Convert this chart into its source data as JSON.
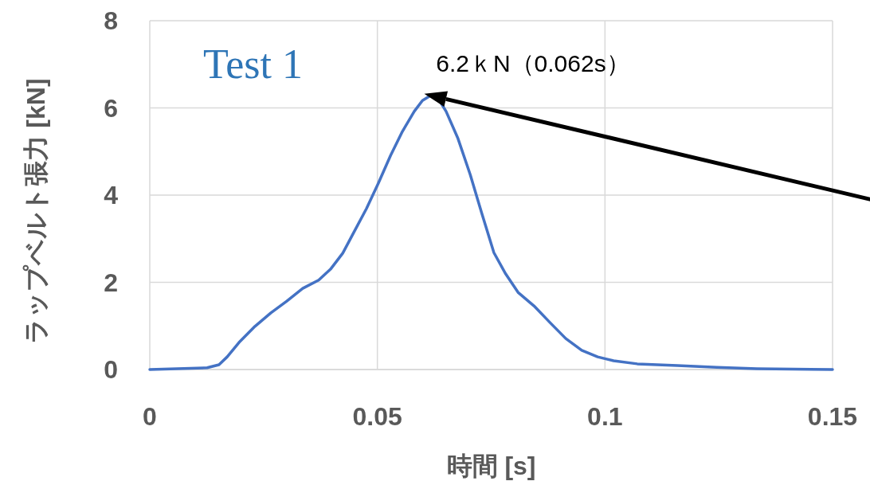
{
  "chart_data": {
    "type": "line",
    "xlabel": "時間 [s]",
    "ylabel": "ラップベルト張力 [kN]",
    "annotations": [
      "Test 1",
      {
        "text": "6.2ｋN（0.062s）",
        "x": 0.062,
        "y": 6.28
      }
    ],
    "x": [
      0,
      0.0126,
      0.0152,
      0.017,
      0.0196,
      0.0231,
      0.0266,
      0.0301,
      0.0336,
      0.0371,
      0.0397,
      0.0424,
      0.045,
      0.0476,
      0.0502,
      0.0529,
      0.0555,
      0.0581,
      0.0599,
      0.0616,
      0.0634,
      0.0651,
      0.0677,
      0.0704,
      0.073,
      0.0756,
      0.0782,
      0.0809,
      0.0844,
      0.0879,
      0.0914,
      0.0949,
      0.0984,
      0.1019,
      0.1071,
      0.1159,
      0.1246,
      0.1334,
      0.15
    ],
    "series": [
      {
        "color": "#4472c4",
        "values": [
          0,
          0.04,
          0.11,
          0.29,
          0.62,
          0.99,
          1.3,
          1.57,
          1.86,
          2.05,
          2.3,
          2.67,
          3.18,
          3.69,
          4.27,
          4.91,
          5.46,
          5.92,
          6.17,
          6.28,
          6.21,
          5.92,
          5.3,
          4.47,
          3.56,
          2.68,
          2.19,
          1.77,
          1.46,
          1.08,
          0.71,
          0.44,
          0.29,
          0.2,
          0.13,
          0.09,
          0.05,
          0.02,
          0
        ]
      }
    ],
    "xlim": [
      0,
      0.15
    ],
    "ylim": [
      0,
      8
    ],
    "xticks": [
      0,
      0.05,
      0.1,
      0.15
    ],
    "yticks": [
      0,
      2,
      4,
      6,
      8
    ],
    "grid": true
  }
}
